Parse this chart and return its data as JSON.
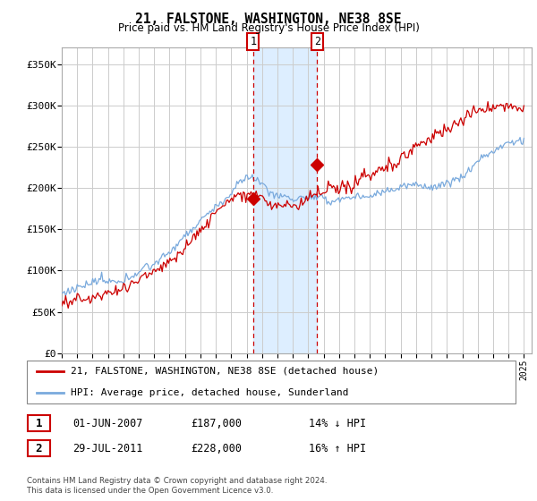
{
  "title": "21, FALSTONE, WASHINGTON, NE38 8SE",
  "subtitle": "Price paid vs. HM Land Registry's House Price Index (HPI)",
  "ylabel_ticks": [
    "£0",
    "£50K",
    "£100K",
    "£150K",
    "£200K",
    "£250K",
    "£300K",
    "£350K"
  ],
  "ytick_values": [
    0,
    50000,
    100000,
    150000,
    200000,
    250000,
    300000,
    350000
  ],
  "ylim": [
    0,
    370000
  ],
  "xlim_start": 1995.0,
  "xlim_end": 2025.5,
  "marker1_x": 2007.417,
  "marker1_y": 187000,
  "marker2_x": 2011.575,
  "marker2_y": 228000,
  "shade_x1": 2007.417,
  "shade_x2": 2011.575,
  "line1_label": "21, FALSTONE, WASHINGTON, NE38 8SE (detached house)",
  "line2_label": "HPI: Average price, detached house, Sunderland",
  "table_row1": [
    "1",
    "01-JUN-2007",
    "£187,000",
    "14% ↓ HPI"
  ],
  "table_row2": [
    "2",
    "29-JUL-2011",
    "£228,000",
    "16% ↑ HPI"
  ],
  "footer": "Contains HM Land Registry data © Crown copyright and database right 2024.\nThis data is licensed under the Open Government Licence v3.0.",
  "line1_color": "#cc0000",
  "line2_color": "#7aaadd",
  "shade_color": "#ddeeff",
  "marker_color": "#cc0000",
  "background_color": "#ffffff"
}
